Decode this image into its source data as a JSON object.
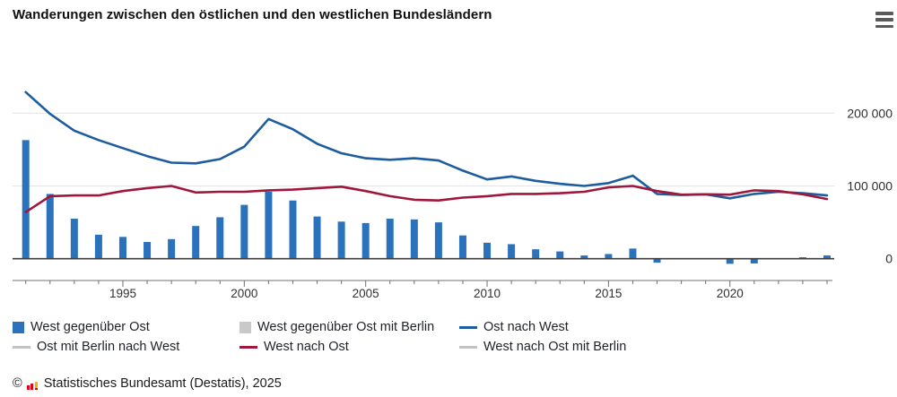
{
  "title": "Wanderungen zwischen den östlichen und den westlichen Bundesländern",
  "menu": {
    "icon": "hamburger-icon",
    "label": "Chart context menu"
  },
  "colors": {
    "bar_blue": "#2b72bd",
    "line_blue": "#1d5c9f",
    "line_red": "#a0173c",
    "hidden_gray": "#c9c9c9",
    "grid": "#e4e4e4",
    "zero_line": "#3f3f3f",
    "axis": "#707070",
    "axis_text": "#2f2f2f"
  },
  "y_axis": {
    "labels": [
      {
        "text": "200 000",
        "value": 200000
      },
      {
        "text": "100 000",
        "value": 100000
      },
      {
        "text": "0",
        "value": 0
      }
    ]
  },
  "x_axis": {
    "labeled_years": [
      1995,
      2000,
      2005,
      2010,
      2015,
      2020
    ]
  },
  "chart_data": {
    "type": "bar+line combo",
    "x": [
      1991,
      1992,
      1993,
      1994,
      1995,
      1996,
      1997,
      1998,
      1999,
      2000,
      2001,
      2002,
      2003,
      2004,
      2005,
      2006,
      2007,
      2008,
      2009,
      2010,
      2011,
      2012,
      2013,
      2014,
      2015,
      2016,
      2017,
      2018,
      2019,
      2020,
      2021,
      2022,
      2023,
      2024
    ],
    "series": [
      {
        "name": "West gegenüber Ost",
        "type": "bar",
        "color": "#2b72bd",
        "visible": true,
        "values": [
          163000,
          89000,
          55000,
          33000,
          30000,
          23000,
          27000,
          45000,
          57000,
          74000,
          92000,
          80000,
          58000,
          51000,
          49000,
          55000,
          54000,
          50000,
          32000,
          22000,
          20000,
          13000,
          10000,
          4500,
          6500,
          14000,
          -5500,
          500,
          500,
          -7000,
          -6500,
          -500,
          2000,
          4500
        ]
      },
      {
        "name": "Ost nach West",
        "type": "line",
        "color": "#1d5c9f",
        "visible": true,
        "values": [
          229000,
          199000,
          176000,
          163000,
          152000,
          141000,
          132000,
          131000,
          137000,
          154000,
          192000,
          178000,
          158000,
          145000,
          138000,
          136000,
          138000,
          135000,
          121000,
          109000,
          113000,
          107000,
          103000,
          100000,
          104000,
          114000,
          89000,
          87500,
          88500,
          83000,
          89000,
          92000,
          90000,
          87000
        ]
      },
      {
        "name": "West nach Ost",
        "type": "line",
        "color": "#a0173c",
        "visible": true,
        "values": [
          64000,
          86000,
          87000,
          87000,
          93000,
          97000,
          100000,
          91000,
          92000,
          92000,
          94000,
          95000,
          97000,
          99000,
          93000,
          86000,
          81000,
          80000,
          84000,
          86000,
          89000,
          89000,
          90000,
          92000,
          98000,
          100000,
          93000,
          88000,
          88500,
          88000,
          94000,
          93000,
          88500,
          82000
        ]
      },
      {
        "name": "West gegenüber Ost mit Berlin",
        "type": "bar",
        "color": "#c9c9c9",
        "visible": false,
        "values": []
      },
      {
        "name": "Ost mit Berlin nach West",
        "type": "line",
        "color": "#c2c2c2",
        "visible": false,
        "values": []
      },
      {
        "name": "West nach Ost mit Berlin",
        "type": "line",
        "color": "#c2c2c2",
        "visible": false,
        "values": []
      }
    ],
    "ylim": [
      -20000,
      240000
    ],
    "grid": "horizontal",
    "legend_position": "bottom"
  },
  "legend": {
    "items": [
      {
        "label": "West gegenüber Ost",
        "marker": "square",
        "color": "#2b72bd",
        "row": 0,
        "col": 0
      },
      {
        "label": "West gegenüber Ost mit Berlin",
        "marker": "square",
        "color": "#c9c9c9",
        "row": 0,
        "col": 1
      },
      {
        "label": "Ost nach West",
        "marker": "line",
        "color": "#1d5c9f",
        "row": 0,
        "col": 2
      },
      {
        "label": "Ost mit Berlin nach West",
        "marker": "line",
        "color": "#c2c2c2",
        "row": 1,
        "col": 0
      },
      {
        "label": "West nach Ost",
        "marker": "line",
        "color": "#a0173c",
        "row": 1,
        "col": 1
      },
      {
        "label": "West nach Ost mit Berlin",
        "marker": "line",
        "color": "#c2c2c2",
        "row": 1,
        "col": 2
      }
    ]
  },
  "footer": {
    "copyright": "©",
    "source": "Statistisches Bundesamt (Destatis), 2025"
  }
}
